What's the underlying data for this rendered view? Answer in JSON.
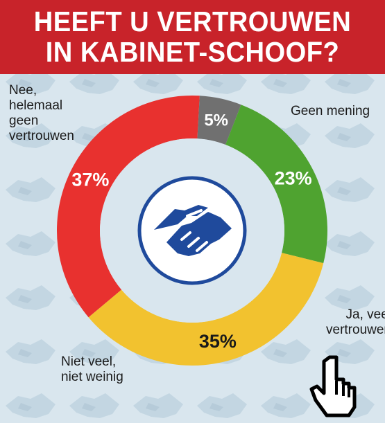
{
  "header": {
    "title_line1": "HEEFT U VERTROUWEN",
    "title_line2": "IN KABINET-SCHOOF?"
  },
  "colors": {
    "header_bg": "#c8232a",
    "background": "#d9e6ee",
    "icon_blue": "#1f4a9c"
  },
  "icons": {
    "center": "handshake-icon",
    "pattern": "handshake-pattern",
    "pointer": "hand-pointer-icon"
  },
  "chart_data": {
    "type": "pie",
    "donut": true,
    "slices": [
      {
        "label_lines": [
          "Nee,",
          "helemaal",
          "geen",
          "vertrouwen"
        ],
        "value": 37,
        "value_label": "37%",
        "color": "#e8312f",
        "value_color": "#ffffff"
      },
      {
        "label_lines": [
          "Geen mening"
        ],
        "value": 5,
        "value_label": "5%",
        "color": "#707070",
        "value_color": "#ffffff"
      },
      {
        "label_lines": [
          "Ja, veel",
          "vertrouwen"
        ],
        "value": 23,
        "value_label": "23%",
        "color": "#4fa330",
        "value_color": "#ffffff"
      },
      {
        "label_lines": [
          "Niet veel,",
          "niet weinig"
        ],
        "value": 35,
        "value_label": "35%",
        "color": "#f2c22f",
        "value_color": "#1a1a1a"
      }
    ]
  }
}
